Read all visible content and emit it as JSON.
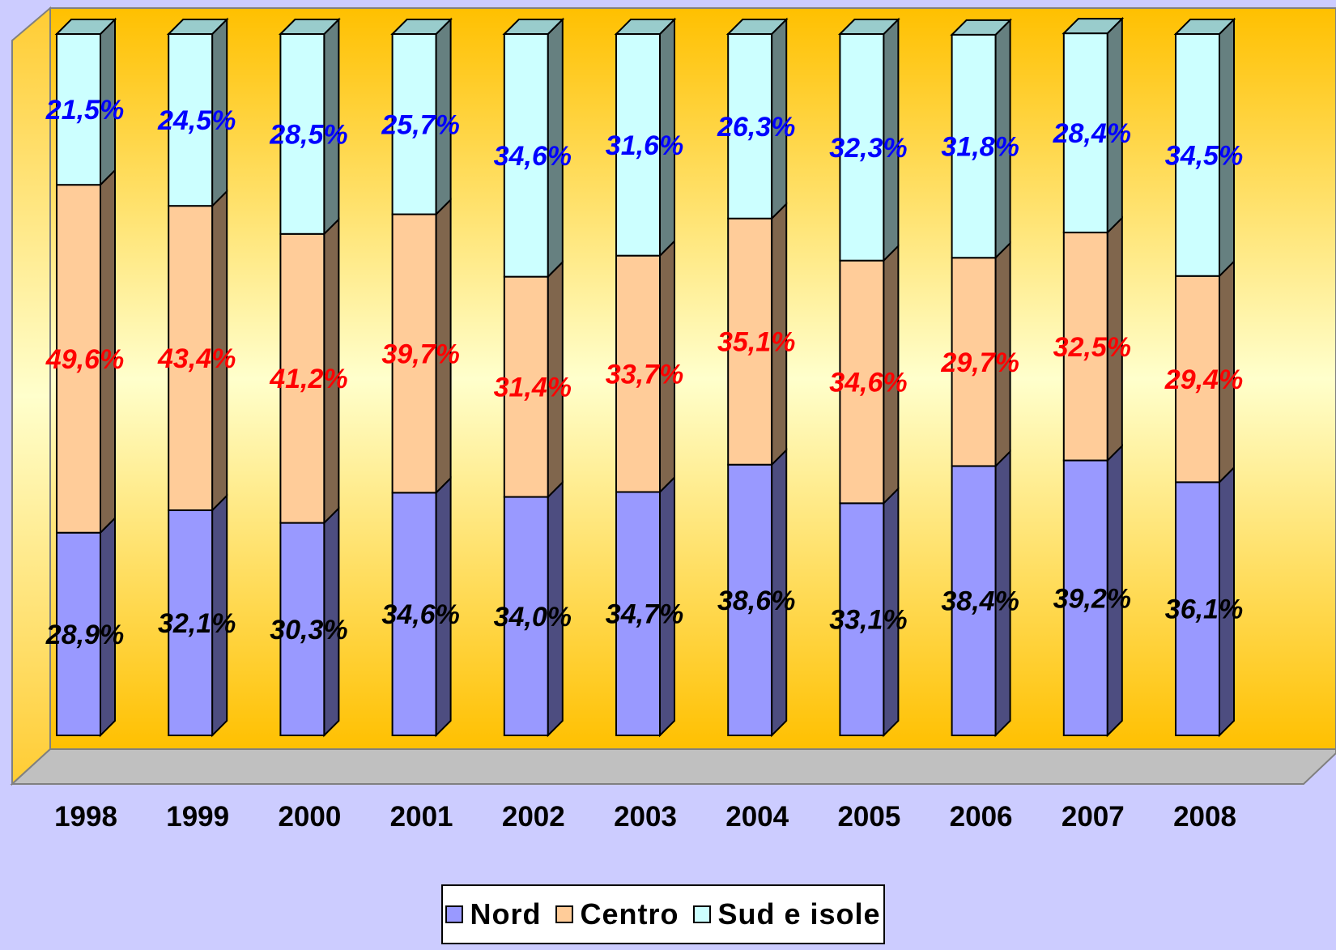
{
  "chart_data": {
    "type": "bar",
    "stacked": true,
    "percent": true,
    "categories": [
      "1998",
      "1999",
      "2000",
      "2001",
      "2002",
      "2003",
      "2004",
      "2005",
      "2006",
      "2007",
      "2008"
    ],
    "series": [
      {
        "name": "Nord",
        "color": "#9999ff",
        "side_color": "#4d4d80",
        "label_color": "#000000",
        "values": [
          28.9,
          32.1,
          30.3,
          34.6,
          34.0,
          34.7,
          38.6,
          33.1,
          38.4,
          39.2,
          36.1
        ],
        "labels": [
          "28,9%",
          "32,1%",
          "30,3%",
          "34,6%",
          "34,0%",
          "34,7%",
          "38,6%",
          "33,1%",
          "38,4%",
          "39,2%",
          "36,1%"
        ]
      },
      {
        "name": "Centro",
        "color": "#ffcc99",
        "side_color": "#80664d",
        "label_color": "#ff0000",
        "values": [
          49.6,
          43.4,
          41.2,
          39.7,
          31.4,
          33.7,
          35.1,
          34.6,
          29.7,
          32.5,
          29.4
        ],
        "labels": [
          "49,6%",
          "43,4%",
          "41,2%",
          "39,7%",
          "31,4%",
          "33,7%",
          "35,1%",
          "34,6%",
          "29,7%",
          "32,5%",
          "29,4%"
        ]
      },
      {
        "name": "Sud e isole",
        "color": "#ccffff",
        "side_color": "#668080",
        "label_color": "#0000ff",
        "values": [
          21.5,
          24.5,
          28.5,
          25.7,
          34.6,
          31.6,
          26.3,
          32.3,
          31.8,
          28.4,
          34.5
        ],
        "labels": [
          "21,5%",
          "24,5%",
          "28,5%",
          "25,7%",
          "34,6%",
          "31,6%",
          "26,3%",
          "32,3%",
          "31,8%",
          "28,4%",
          "34,5%"
        ]
      }
    ],
    "ylim": [
      0,
      100
    ],
    "grid": false,
    "legend_position": "bottom",
    "wall_colors": [
      "#ffc000",
      "#ffffcc"
    ],
    "floor_color": "#c0c0c0"
  }
}
